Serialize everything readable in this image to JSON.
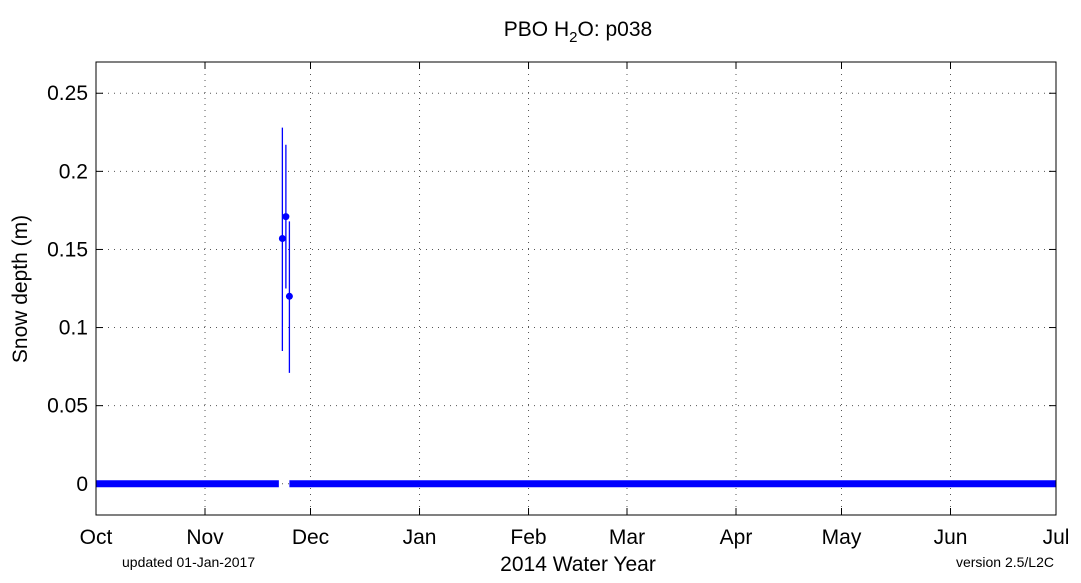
{
  "chart_data": {
    "type": "scatter",
    "title_prefix": "PBO H",
    "title_sub": "2",
    "title_suffix": "O: p038",
    "xlabel": "2014 Water Year",
    "ylabel": "Snow depth (m)",
    "footer_left": "updated 01-Jan-2017",
    "footer_right": "version 2.5/L2C",
    "xlim": [
      "2013-10-01",
      "2014-07-01"
    ],
    "ylim": [
      -0.02,
      0.27
    ],
    "grid": true,
    "x_ticks": [
      {
        "label": "Oct",
        "date": "2013-10-01"
      },
      {
        "label": "Nov",
        "date": "2013-11-01"
      },
      {
        "label": "Dec",
        "date": "2013-12-01"
      },
      {
        "label": "Jan",
        "date": "2014-01-01"
      },
      {
        "label": "Feb",
        "date": "2014-02-01"
      },
      {
        "label": "Mar",
        "date": "2014-03-01"
      },
      {
        "label": "Apr",
        "date": "2014-04-01"
      },
      {
        "label": "May",
        "date": "2014-05-01"
      },
      {
        "label": "Jun",
        "date": "2014-06-01"
      },
      {
        "label": "Jul",
        "date": "2014-07-01"
      }
    ],
    "y_ticks": [
      {
        "label": "0",
        "value": 0
      },
      {
        "label": "0.05",
        "value": 0.05
      },
      {
        "label": "0.1",
        "value": 0.1
      },
      {
        "label": "0.15",
        "value": 0.15
      },
      {
        "label": "0.2",
        "value": 0.2
      },
      {
        "label": "0.25",
        "value": 0.25
      }
    ],
    "color": "#0000ff",
    "points": [
      {
        "date": "2013-11-23",
        "value": 0.157,
        "low": 0.085,
        "high": 0.228
      },
      {
        "date": "2013-11-24",
        "value": 0.171,
        "low": 0.125,
        "high": 0.217
      },
      {
        "date": "2013-11-25",
        "value": 0.12,
        "low": 0.071,
        "high": 0.168
      }
    ],
    "zero_segments": [
      {
        "start": "2013-10-01",
        "end": "2013-11-22"
      },
      {
        "start": "2013-11-25",
        "end": "2014-07-01"
      }
    ]
  }
}
